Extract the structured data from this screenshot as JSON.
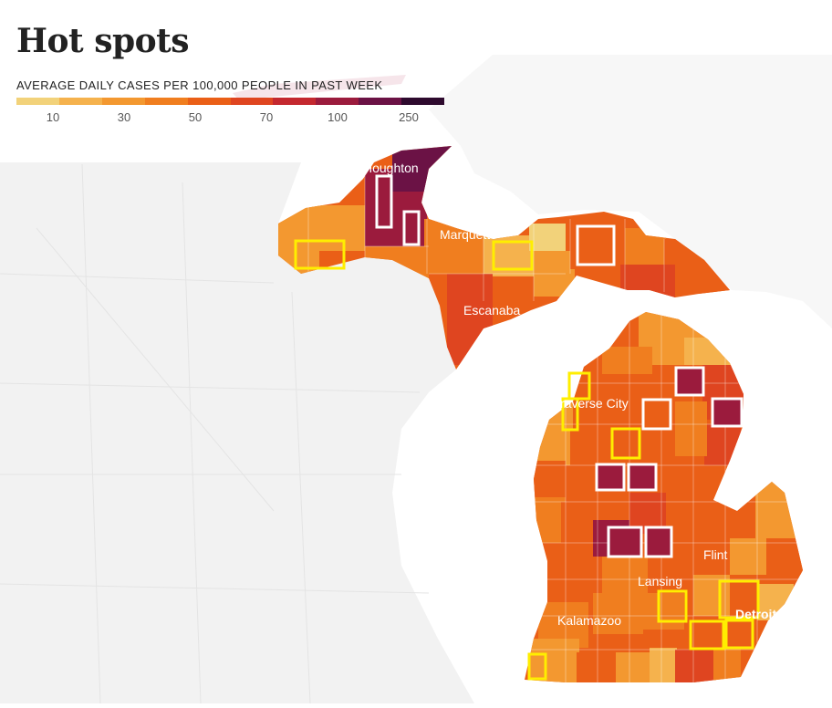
{
  "title": "Hot spots",
  "legend": {
    "title": "AVERAGE DAILY CASES PER 100,000 PEOPLE IN PAST WEEK",
    "colors": [
      "#f2d27a",
      "#f5b24d",
      "#f39830",
      "#f07e1f",
      "#ea5f17",
      "#df4520",
      "#c4282f",
      "#9b1b3d",
      "#6b1245",
      "#2e0a2e"
    ],
    "ticks": [
      "10",
      "30",
      "50",
      "70",
      "100",
      "250"
    ]
  },
  "cities": {
    "houghton": "Houghton",
    "marquette": "Marquette",
    "escanaba": "Escanaba",
    "traverse_city": "Traverse City",
    "flint": "Flint",
    "lansing": "Lansing",
    "kalamazoo": "Kalamazoo",
    "detroit": "Detroit"
  },
  "highlight_colors": {
    "increasing": "#ffffff",
    "decreasing": "#ffee00"
  }
}
